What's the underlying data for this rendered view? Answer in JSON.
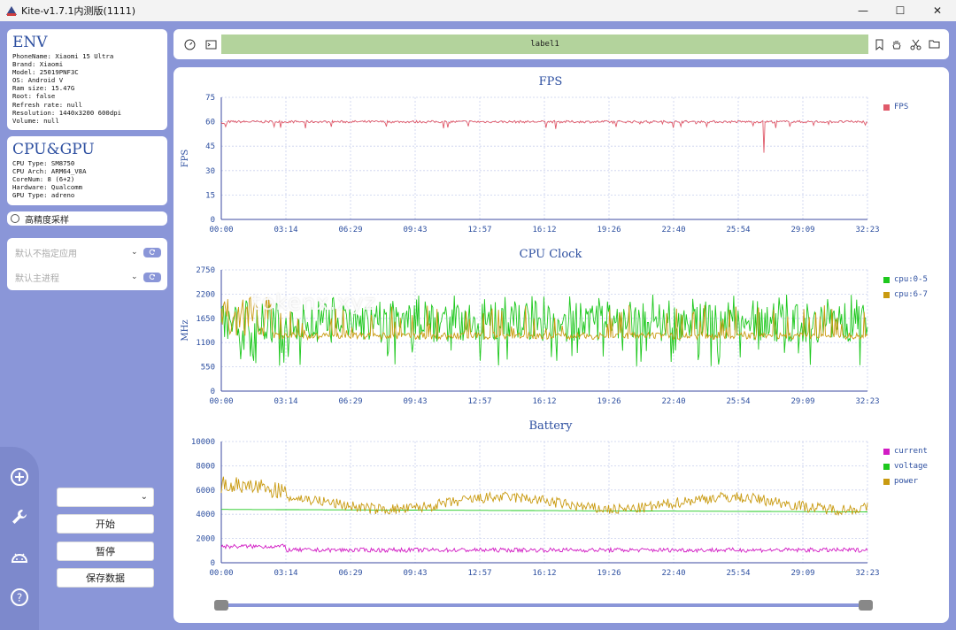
{
  "window": {
    "title": "Kite-v1.7.1内测版(1111)",
    "minimize": "—",
    "maximize": "☐",
    "close": "✕"
  },
  "env": {
    "title": "ENV",
    "lines": [
      "PhoneName: Xiaomi 15 Ultra",
      "Brand: Xiaomi",
      "Model: 25019PNF3C",
      "OS: Android V",
      "Ram size: 15.47G",
      "Root: false",
      "Refresh rate: null",
      "Resolution: 1440x3200 600dpi",
      "Volume: null"
    ]
  },
  "cpugpu": {
    "title": "CPU&GPU",
    "lines": [
      "CPU Type: SM8750",
      "CPU Arch: ARM64_V8A",
      "CoreNum: 8 (6+2)",
      "Hardware: Qualcomm",
      "GPU Type: adreno"
    ]
  },
  "high_precision": {
    "label": "高精度采样",
    "checked": false
  },
  "selectors": {
    "app": {
      "placeholder": "默认不指定应用"
    },
    "process": {
      "placeholder": "默认主进程"
    }
  },
  "controls": {
    "dropdown_value": "",
    "start": "开始",
    "pause": "暂停",
    "save": "保存数据"
  },
  "toolbar": {
    "label": "label1"
  },
  "sidebar_icons": [
    "add-circle-icon",
    "wrench-icon",
    "android-icon",
    "help-icon"
  ],
  "watermark": "tokenx.xyz",
  "time_ticks": [
    "00:00",
    "03:14",
    "06:29",
    "09:43",
    "12:57",
    "16:12",
    "19:26",
    "22:40",
    "25:54",
    "29:09",
    "32:23"
  ],
  "slider": {
    "start": 0,
    "end": 1
  },
  "chart_data": [
    {
      "type": "line",
      "title": "FPS",
      "ylabel": "FPS",
      "ylim": [
        0,
        75
      ],
      "yticks": [
        0,
        15,
        30,
        45,
        60,
        75
      ],
      "legend_position": "right",
      "series": [
        {
          "name": "FPS",
          "color": "#e05a6a",
          "baseline": 60,
          "dips": [
            [
              0.13,
              56
            ],
            [
              0.84,
              41
            ],
            [
              0.88,
              57
            ]
          ]
        }
      ]
    },
    {
      "type": "line",
      "title": "CPU Clock",
      "ylabel": "MHz",
      "ylim": [
        0,
        2750
      ],
      "yticks": [
        0,
        550,
        1100,
        1650,
        2200,
        2750
      ],
      "legend_position": "right",
      "series": [
        {
          "name": "cpu:0-5",
          "color": "#1ec81e",
          "baseline": 1550,
          "min": 550,
          "max": 2200
        },
        {
          "name": "cpu:6-7",
          "color": "#c99a10",
          "baseline": 1250,
          "min": 1150,
          "max": 2200
        }
      ]
    },
    {
      "type": "line",
      "title": "Battery",
      "ylabel": "",
      "ylim": [
        0,
        10000
      ],
      "yticks": [
        0,
        2000,
        4000,
        6000,
        8000,
        10000
      ],
      "legend_position": "right",
      "series": [
        {
          "name": "current",
          "color": "#d21cc4",
          "baseline": 1050
        },
        {
          "name": "voltage",
          "color": "#1ec81e",
          "baseline": 4400
        },
        {
          "name": "power",
          "color": "#c99a10",
          "baseline": 4900
        }
      ]
    }
  ]
}
